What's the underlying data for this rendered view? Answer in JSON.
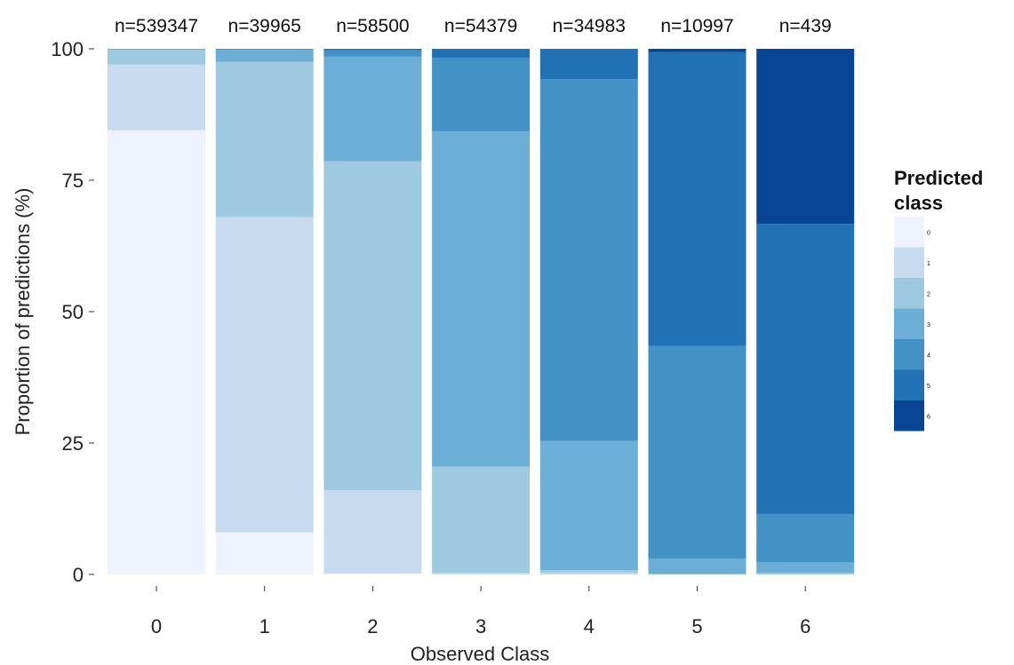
{
  "chart_data": {
    "type": "bar",
    "stacked": true,
    "categories": [
      "0",
      "1",
      "2",
      "3",
      "4",
      "5",
      "6"
    ],
    "n_labels": [
      "n=539347",
      "n=39965",
      "n=58500",
      "n=54379",
      "n=34983",
      "n=10997",
      "n=439"
    ],
    "xlabel": "Observed Class",
    "ylabel": "Proportion of predictions (%)",
    "ylim": [
      0,
      100
    ],
    "yticks": [
      0,
      25,
      50,
      75,
      100
    ],
    "grid": false,
    "legend": {
      "title_line1": "Predicted",
      "title_line2": "class",
      "placement": "right",
      "order": "top-to-bottom"
    },
    "colors": {
      "0": "#eff3ff",
      "1": "#c6dbef",
      "2": "#9ecae1",
      "3": "#6baed6",
      "4": "#4292c6",
      "5": "#2171b5",
      "6": "#084594"
    },
    "series": [
      {
        "name": "0",
        "values": [
          84.5,
          8.0,
          0.2,
          0.0,
          0.0,
          0.0,
          0.0
        ]
      },
      {
        "name": "1",
        "values": [
          12.5,
          60.0,
          15.8,
          0.3,
          0.3,
          0.0,
          0.0
        ]
      },
      {
        "name": "2",
        "values": [
          2.8,
          29.5,
          62.6,
          20.2,
          0.5,
          0.1,
          0.3
        ]
      },
      {
        "name": "3",
        "values": [
          0.2,
          2.3,
          19.9,
          63.8,
          24.2,
          2.9,
          2.0
        ]
      },
      {
        "name": "4",
        "values": [
          0.0,
          0.2,
          1.2,
          14.0,
          67.6,
          40.5,
          9.2
        ]
      },
      {
        "name": "5",
        "values": [
          0.0,
          0.0,
          0.3,
          1.7,
          5.7,
          55.9,
          55.2
        ]
      },
      {
        "name": "6",
        "values": [
          0.0,
          0.0,
          0.0,
          0.0,
          0.0,
          0.6,
          33.3
        ]
      }
    ]
  }
}
